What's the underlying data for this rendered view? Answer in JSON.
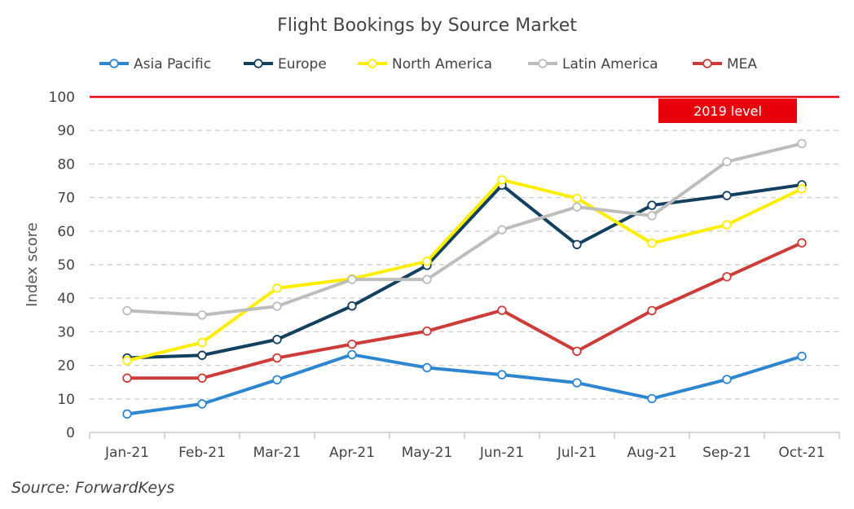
{
  "chart_data": {
    "type": "line",
    "title": "Flight Bookings by Source Market",
    "ylabel": "Index  score",
    "xlabel": "",
    "ylim": [
      0,
      100
    ],
    "yticks": [
      0,
      10,
      20,
      30,
      40,
      50,
      60,
      70,
      80,
      90,
      100
    ],
    "grid": true,
    "legend_position": "top",
    "categories": [
      "Jan-21",
      "Feb-21",
      "Mar-21",
      "Apr-21",
      "May-21",
      "Jun-21",
      "Jul-21",
      "Aug-21",
      "Sep-21",
      "Oct-21"
    ],
    "series": [
      {
        "name": "Asia Pacific",
        "color": "#2e86d1",
        "values": [
          5.5,
          8.5,
          15.7,
          23.2,
          19.3,
          17.2,
          14.8,
          10.1,
          15.8,
          22.7
        ]
      },
      {
        "name": "Europe",
        "color": "#13405f",
        "values": [
          22.2,
          23.0,
          27.7,
          37.7,
          49.8,
          73.7,
          56.0,
          67.7,
          70.6,
          73.8
        ]
      },
      {
        "name": "North America",
        "color": "#ffee00",
        "values": [
          21.4,
          26.8,
          43.0,
          45.8,
          51.0,
          75.3,
          69.8,
          56.4,
          61.9,
          72.6
        ]
      },
      {
        "name": "Latin America",
        "color": "#bdbdbd",
        "values": [
          36.3,
          35.0,
          37.6,
          45.6,
          45.6,
          60.4,
          67.2,
          64.6,
          80.7,
          86.1
        ]
      },
      {
        "name": "MEA",
        "color": "#cc3d3a",
        "values": [
          16.2,
          16.2,
          22.2,
          26.3,
          30.2,
          36.4,
          24.2,
          36.3,
          46.4,
          56.5
        ]
      }
    ],
    "reference_line": {
      "value": 100,
      "label": "2019 level",
      "color": "#e8000b"
    }
  },
  "source": "Source: ForwardKeys"
}
